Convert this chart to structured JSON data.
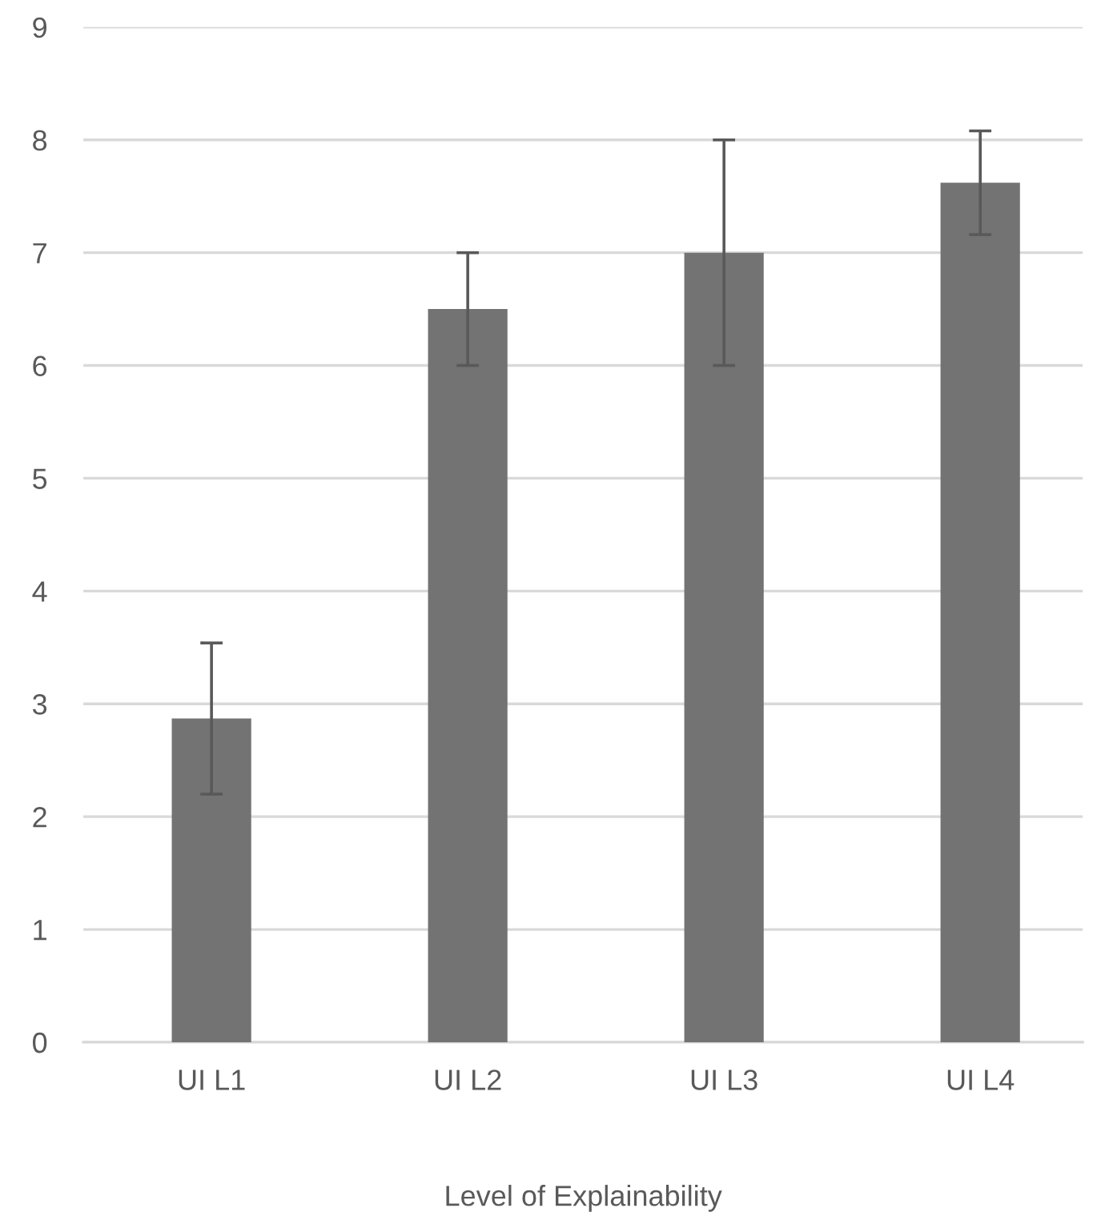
{
  "chart_data": {
    "type": "bar",
    "xlabel": "Level of Explainability",
    "categories": [
      "UI L1",
      "UI L2",
      "UI L3",
      "UI L4"
    ],
    "values": [
      2.87,
      6.5,
      7.0,
      7.62
    ],
    "errors": [
      [
        2.2,
        3.54
      ],
      [
        6.0,
        7.0
      ],
      [
        6.0,
        8.0
      ],
      [
        7.16,
        8.08
      ]
    ],
    "color": "#737373",
    "ylim": [
      0,
      9
    ],
    "yticks": [
      0,
      1,
      2,
      3,
      4,
      5,
      6,
      7,
      8,
      9
    ],
    "grid": "y",
    "legend": false
  }
}
